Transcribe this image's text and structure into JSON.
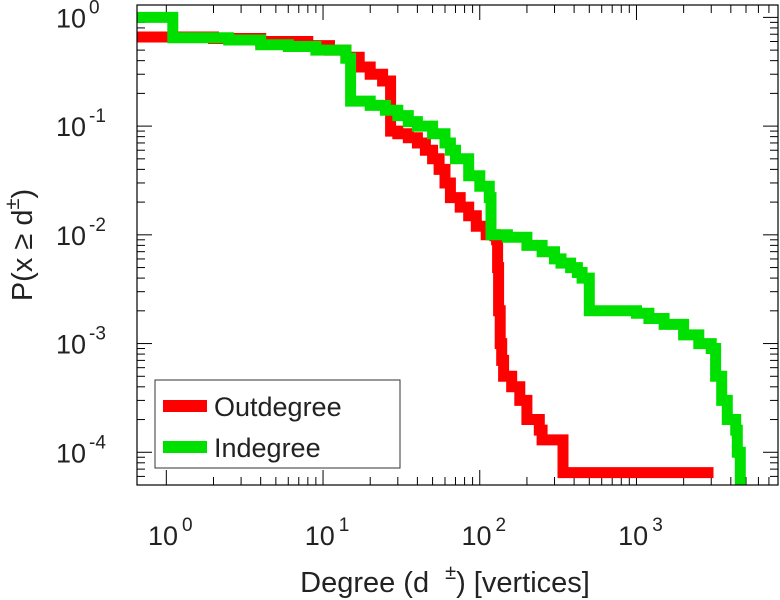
{
  "chart_data": {
    "type": "line",
    "step": true,
    "title": "",
    "xlabel": "Degree (d",
    "xlabel_sup": "±",
    "xlabel_tail": ") [vertices]",
    "ylabel": "P(x ≥ d",
    "ylabel_sup": "±",
    "ylabel_tail": ")",
    "xscale": "log",
    "yscale": "log",
    "xlim": [
      0.65,
      8000
    ],
    "ylim": [
      5e-05,
      1.3
    ],
    "xticks": [
      {
        "value": 1,
        "base": "10",
        "exp": "0"
      },
      {
        "value": 10,
        "base": "10",
        "exp": "1"
      },
      {
        "value": 100,
        "base": "10",
        "exp": "2"
      },
      {
        "value": 1000,
        "base": "10",
        "exp": "3"
      }
    ],
    "yticks": [
      {
        "value": 1,
        "base": "10",
        "exp": "0"
      },
      {
        "value": 0.1,
        "base": "10",
        "exp": "-1"
      },
      {
        "value": 0.01,
        "base": "10",
        "exp": "-2"
      },
      {
        "value": 0.001,
        "base": "10",
        "exp": "-3"
      },
      {
        "value": 0.0001,
        "base": "10",
        "exp": "-4"
      }
    ],
    "legend": {
      "placement": "bottom-left"
    },
    "series": [
      {
        "name": "Outdegree",
        "color": "#ff0000",
        "points": [
          [
            0.65,
            0.66
          ],
          [
            2,
            0.64
          ],
          [
            4,
            0.6
          ],
          [
            8,
            0.55
          ],
          [
            11,
            0.5
          ],
          [
            14,
            0.43
          ],
          [
            17,
            0.35
          ],
          [
            20,
            0.3
          ],
          [
            24,
            0.26
          ],
          [
            27,
            0.2
          ],
          [
            27,
            0.09
          ],
          [
            30,
            0.085
          ],
          [
            35,
            0.078
          ],
          [
            40,
            0.07
          ],
          [
            45,
            0.06
          ],
          [
            50,
            0.05
          ],
          [
            55,
            0.04
          ],
          [
            60,
            0.03
          ],
          [
            65,
            0.022
          ],
          [
            75,
            0.018
          ],
          [
            85,
            0.015
          ],
          [
            95,
            0.012
          ],
          [
            110,
            0.01
          ],
          [
            125,
            0.0098
          ],
          [
            128,
            0.009
          ],
          [
            130,
            0.005
          ],
          [
            132,
            0.002
          ],
          [
            135,
            0.001
          ],
          [
            138,
            0.0007
          ],
          [
            142,
            0.0005
          ],
          [
            160,
            0.0004
          ],
          [
            180,
            0.0003
          ],
          [
            200,
            0.0002
          ],
          [
            240,
            0.00016
          ],
          [
            250,
            0.00013
          ],
          [
            335,
            0.00013
          ],
          [
            340,
            6.5e-05
          ],
          [
            3100,
            6.5e-05
          ]
        ]
      },
      {
        "name": "Indegree",
        "color": "#00e000",
        "points": [
          [
            0.65,
            1.0
          ],
          [
            1.1,
            1.0
          ],
          [
            1.1,
            0.65
          ],
          [
            2.5,
            0.62
          ],
          [
            4,
            0.56
          ],
          [
            6,
            0.54
          ],
          [
            9,
            0.5
          ],
          [
            14,
            0.42
          ],
          [
            15,
            0.26
          ],
          [
            15,
            0.17
          ],
          [
            20,
            0.155
          ],
          [
            25,
            0.14
          ],
          [
            30,
            0.125
          ],
          [
            35,
            0.11
          ],
          [
            40,
            0.1
          ],
          [
            50,
            0.085
          ],
          [
            60,
            0.07
          ],
          [
            65,
            0.06
          ],
          [
            70,
            0.05
          ],
          [
            85,
            0.05
          ],
          [
            85,
            0.035
          ],
          [
            100,
            0.035
          ],
          [
            100,
            0.028
          ],
          [
            110,
            0.028
          ],
          [
            115,
            0.022
          ],
          [
            118,
            0.022
          ],
          [
            118,
            0.01
          ],
          [
            150,
            0.0095
          ],
          [
            200,
            0.008
          ],
          [
            250,
            0.007
          ],
          [
            300,
            0.006
          ],
          [
            330,
            0.0055
          ],
          [
            380,
            0.005
          ],
          [
            420,
            0.0045
          ],
          [
            450,
            0.004
          ],
          [
            500,
            0.004
          ],
          [
            500,
            0.002
          ],
          [
            800,
            0.002
          ],
          [
            1000,
            0.0019
          ],
          [
            1200,
            0.0017
          ],
          [
            1500,
            0.0015
          ],
          [
            2000,
            0.0012
          ],
          [
            2500,
            0.001
          ],
          [
            3000,
            0.0009
          ],
          [
            3200,
            0.0005
          ],
          [
            3500,
            0.0003
          ],
          [
            3800,
            0.0002
          ],
          [
            4300,
            0.00016
          ],
          [
            4400,
            0.0001
          ],
          [
            4600,
            5e-05
          ]
        ]
      }
    ]
  }
}
